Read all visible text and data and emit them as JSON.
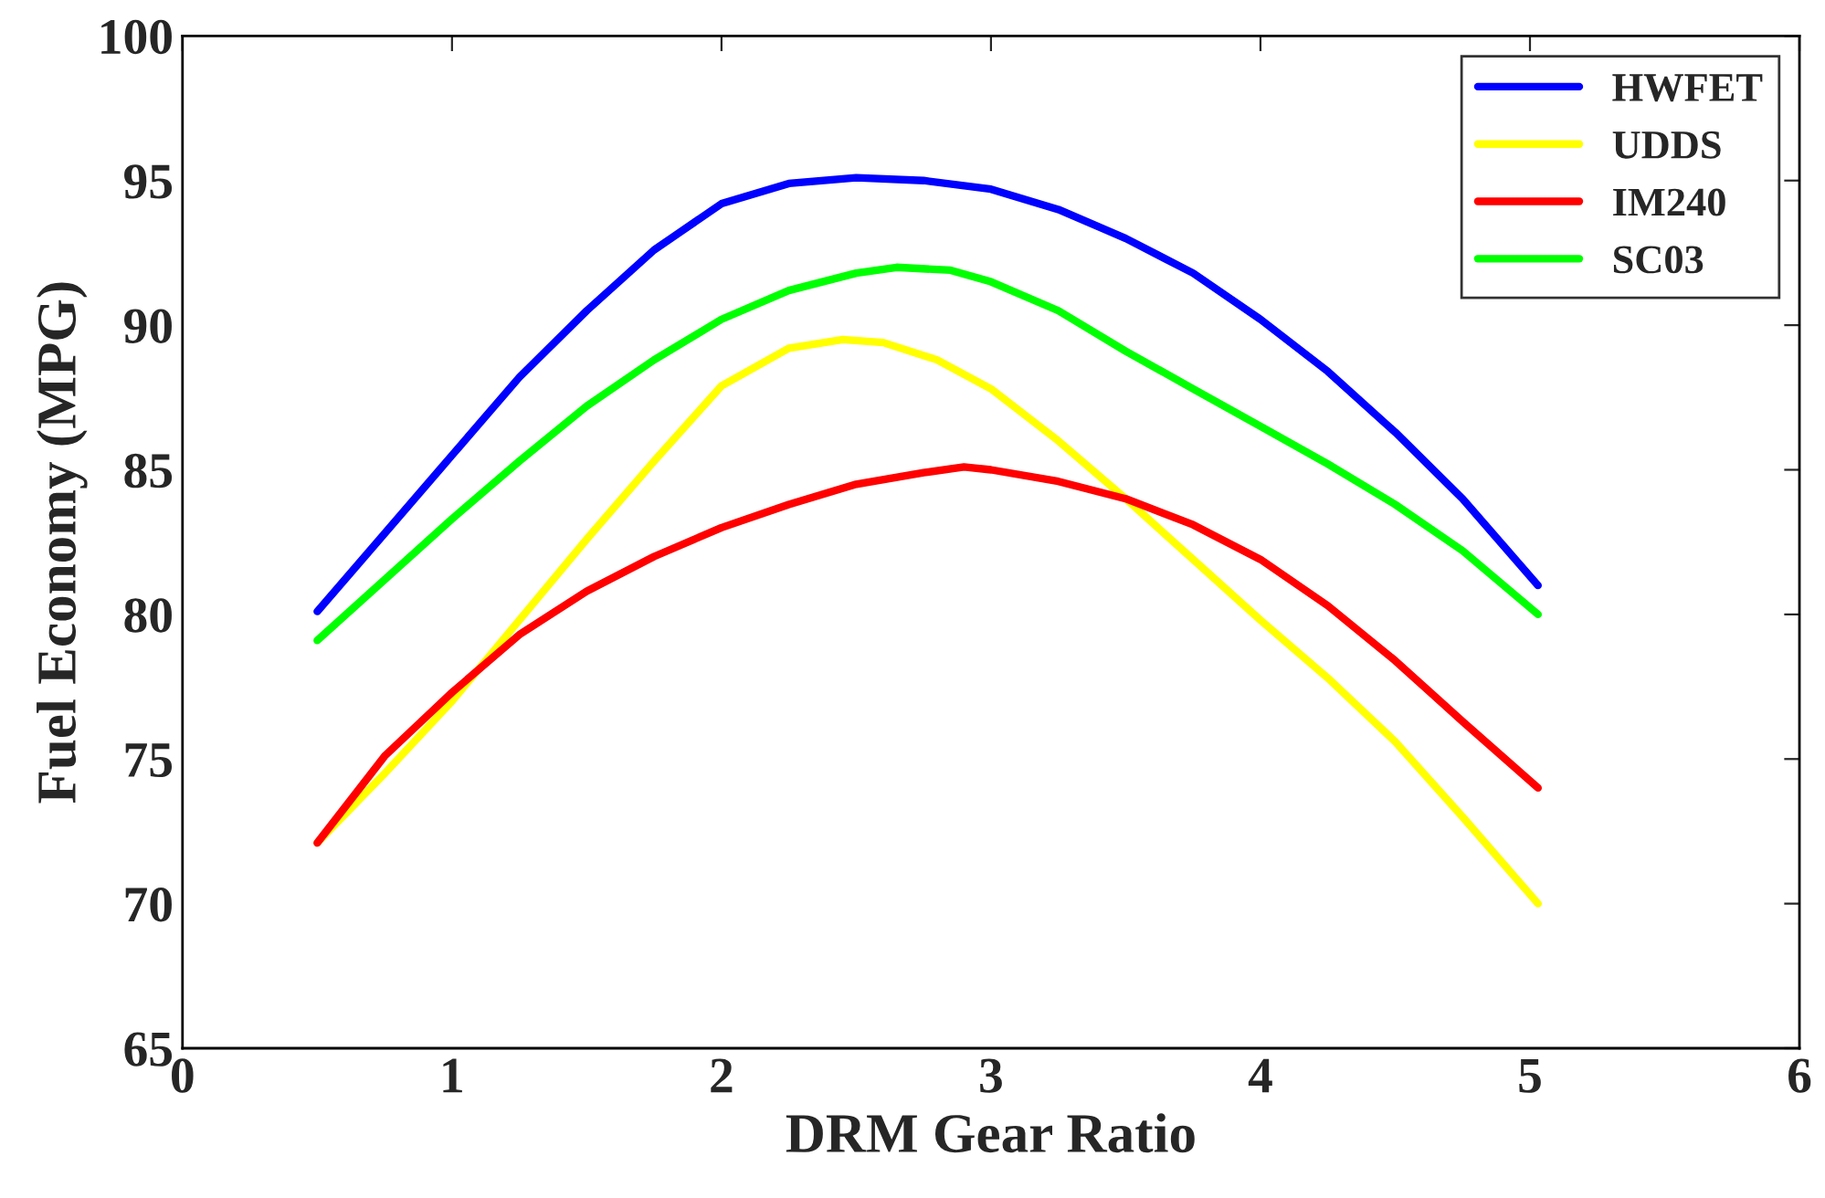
{
  "chart_data": {
    "type": "line",
    "xlabel": "DRM Gear Ratio",
    "ylabel": "Fuel Economy (MPG)",
    "xlim": [
      0,
      6
    ],
    "xticks": [
      0,
      1,
      2,
      3,
      4,
      5,
      6
    ],
    "ylim": [
      65,
      100
    ],
    "yticks": [
      65,
      70,
      75,
      80,
      85,
      90,
      95,
      100
    ],
    "grid": false,
    "legend": "top right",
    "marker": "none",
    "line_style": "solid",
    "series": [
      {
        "name": "HWFET",
        "color": "#0000ff",
        "x": [
          0.5,
          0.75,
          1.0,
          1.25,
          1.5,
          1.75,
          2.0,
          2.25,
          2.5,
          2.75,
          3.0,
          3.25,
          3.5,
          3.75,
          4.0,
          4.25,
          4.5,
          4.75,
          5.03
        ],
        "values": [
          80.1,
          82.8,
          85.5,
          88.2,
          90.5,
          92.6,
          94.2,
          94.9,
          95.1,
          95.0,
          94.7,
          94.0,
          93.0,
          91.8,
          90.2,
          88.4,
          86.3,
          84.0,
          81.0
        ]
      },
      {
        "name": "UDDS",
        "color": "#ffff00",
        "x": [
          0.5,
          0.75,
          1.0,
          1.25,
          1.5,
          1.75,
          2.0,
          2.25,
          2.45,
          2.6,
          2.8,
          3.0,
          3.25,
          3.5,
          3.75,
          4.0,
          4.25,
          4.5,
          4.75,
          5.03
        ],
        "values": [
          72.1,
          74.5,
          77.0,
          79.8,
          82.6,
          85.3,
          87.9,
          89.2,
          89.5,
          89.4,
          88.8,
          87.8,
          86.0,
          84.0,
          81.9,
          79.8,
          77.8,
          75.6,
          73.0,
          70.0
        ]
      },
      {
        "name": "IM240",
        "color": "#ff0000",
        "x": [
          0.5,
          0.75,
          1.0,
          1.25,
          1.5,
          1.75,
          2.0,
          2.25,
          2.5,
          2.75,
          2.9,
          3.0,
          3.25,
          3.5,
          3.75,
          4.0,
          4.25,
          4.5,
          4.75,
          5.03
        ],
        "values": [
          72.1,
          75.1,
          77.3,
          79.3,
          80.8,
          82.0,
          83.0,
          83.8,
          84.5,
          84.9,
          85.1,
          85.0,
          84.6,
          84.0,
          83.1,
          81.9,
          80.3,
          78.4,
          76.3,
          74.0
        ]
      },
      {
        "name": "SC03",
        "color": "#00ff00",
        "x": [
          0.5,
          0.75,
          1.0,
          1.25,
          1.5,
          1.75,
          2.0,
          2.25,
          2.5,
          2.65,
          2.85,
          3.0,
          3.25,
          3.5,
          3.75,
          4.0,
          4.25,
          4.5,
          4.75,
          5.03
        ],
        "values": [
          79.1,
          81.2,
          83.3,
          85.3,
          87.2,
          88.8,
          90.2,
          91.2,
          91.8,
          92.0,
          91.9,
          91.5,
          90.5,
          89.1,
          87.8,
          86.5,
          85.2,
          83.8,
          82.2,
          80.0
        ]
      }
    ]
  }
}
